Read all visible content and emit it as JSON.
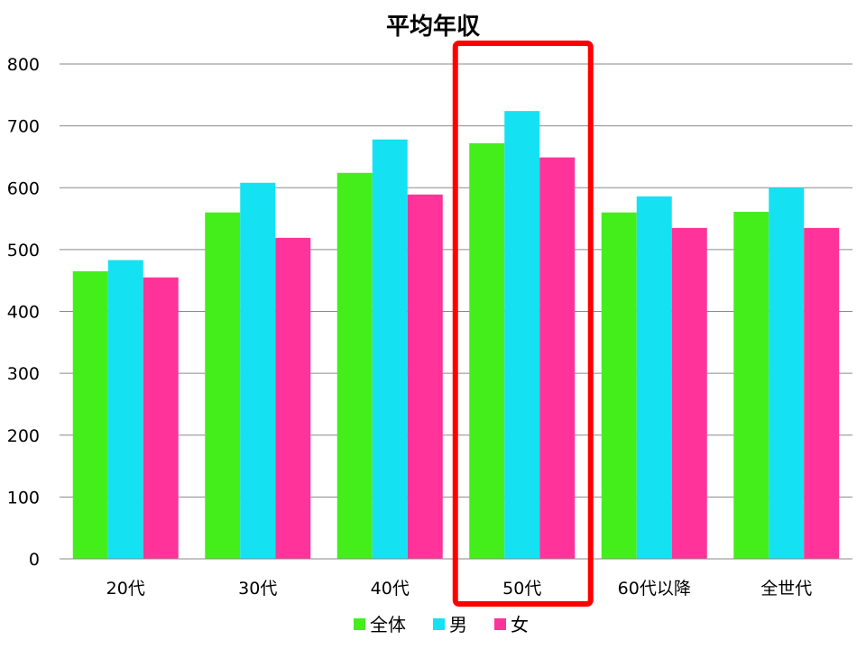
{
  "chart_data": {
    "type": "bar",
    "title": "平均年収",
    "categories": [
      "20代",
      "30代",
      "40代",
      "50代",
      "60代以降",
      "全世代"
    ],
    "series": [
      {
        "name": "全体",
        "color": "#44ee1a",
        "values": [
          465,
          560,
          624,
          672,
          560,
          561
        ]
      },
      {
        "name": "男",
        "color": "#14e2f2",
        "values": [
          483,
          608,
          678,
          724,
          586,
          600
        ]
      },
      {
        "name": "女",
        "color": "#ff3399",
        "values": [
          455,
          519,
          589,
          649,
          535,
          535
        ]
      }
    ],
    "ylim": [
      0,
      800
    ],
    "yticks": [
      0,
      100,
      200,
      300,
      400,
      500,
      600,
      700,
      800
    ],
    "grid": true,
    "legend_position": "bottom",
    "highlight": {
      "category": "50代",
      "color": "#ff0000"
    }
  }
}
